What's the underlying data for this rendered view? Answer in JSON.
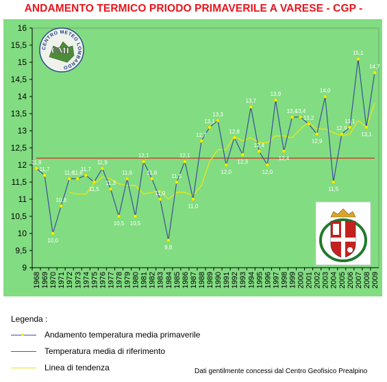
{
  "title": "ANDAMENTO TERMICO PRIODO PRIMAVERILE A VARESE - CGP -",
  "logo_text": "CENTRO METEO LOMBARDO",
  "logo_abbr": "CML",
  "legend": {
    "title": "Legenda :",
    "items": [
      {
        "label": "Andamento temperatura media primaverile"
      },
      {
        "label": "Temperatura media di riferimento"
      },
      {
        "label": "Linea di tendenza"
      }
    ]
  },
  "credit": "Dati gentilmente concessi dal Centro Geofisico Prealpino",
  "chart_data": {
    "type": "line",
    "title": "ANDAMENTO TERMICO PRIODO PRIMAVERILE A VARESE - CGP -",
    "xlabel": "",
    "ylabel": "",
    "ylim": [
      9,
      16
    ],
    "yticks": [
      "9",
      "9,5",
      "10",
      "10,5",
      "11",
      "11,5",
      "12",
      "12,5",
      "13",
      "13,5",
      "14",
      "14,5",
      "15",
      "15,5",
      "16"
    ],
    "categories": [
      "1968",
      "1969",
      "1970",
      "1971",
      "1972",
      "1973",
      "1974",
      "1975",
      "1976",
      "1977",
      "1978",
      "1979",
      "1980",
      "1981",
      "1982",
      "1983",
      "1984",
      "1985",
      "1986",
      "1987",
      "1988",
      "1989",
      "1990",
      "1991",
      "1992",
      "1993",
      "1994",
      "1995",
      "1996",
      "1997",
      "1998",
      "1999",
      "2000",
      "2001",
      "2002",
      "2003",
      "2004",
      "2005",
      "2006",
      "2007",
      "2008",
      "2009"
    ],
    "series": [
      {
        "name": "Andamento temperatura media primaverile",
        "color": "#3a4f9c",
        "values": [
          11.9,
          11.7,
          10.0,
          10.8,
          11.6,
          11.6,
          11.7,
          11.5,
          11.9,
          11.3,
          10.5,
          11.6,
          10.5,
          12.1,
          11.6,
          11.0,
          9.8,
          11.5,
          12.1,
          11.0,
          12.7,
          13.1,
          13.3,
          12.0,
          12.8,
          12.3,
          13.7,
          12.4,
          12.0,
          13.9,
          12.4,
          13.4,
          13.4,
          13.2,
          12.9,
          14.0,
          11.5,
          12.9,
          13.1,
          15.1,
          13.1,
          14.7
        ],
        "point_labels": [
          "11,9",
          "11,7",
          "10,0",
          "10,8",
          "11,6",
          "11,6",
          "11,7",
          "11,5",
          "11,9",
          "11,3",
          "10,5",
          "11,6",
          "10,5",
          "12,1",
          "11,6",
          "11,0",
          "9,8",
          "11,5",
          "12,1",
          "11,0",
          "12,7",
          "13,1",
          "13,3",
          "12,0",
          "12,8",
          "12,3",
          "13,7",
          "12,4",
          "12,0",
          "13,9",
          "12,4",
          "13,4",
          "13,4",
          "13,2",
          "12,9",
          "14,0",
          "11,5",
          "12,9",
          "13,1",
          "15,1",
          "13,1",
          "14,7"
        ]
      },
      {
        "name": "Temperatura media di riferimento",
        "color": "#d42a1f",
        "values": [
          12.2,
          12.2,
          12.2,
          12.2,
          12.2,
          12.2,
          12.2,
          12.2,
          12.2,
          12.2,
          12.2,
          12.2,
          12.2,
          12.2,
          12.2,
          12.2,
          12.2,
          12.2,
          12.2,
          12.2,
          12.2,
          12.2,
          12.2,
          12.2,
          12.2,
          12.2,
          12.2,
          12.2,
          12.2,
          12.2,
          12.2,
          12.2,
          12.2,
          12.2,
          12.2,
          12.2,
          12.2,
          12.2,
          12.2,
          12.2,
          12.2,
          12.2
        ]
      },
      {
        "name": "Linea di tendenza",
        "color": "#e6e61a",
        "values": [
          null,
          null,
          null,
          null,
          11.2,
          11.15,
          11.15,
          11.45,
          11.65,
          11.6,
          11.45,
          11.4,
          11.4,
          11.15,
          11.2,
          11.25,
          11.0,
          11.2,
          11.2,
          11.1,
          11.4,
          12.1,
          12.45,
          12.45,
          12.85,
          12.7,
          12.8,
          12.65,
          12.65,
          12.85,
          12.85,
          12.8,
          13.05,
          13.25,
          13.05,
          13.05,
          12.95,
          12.85,
          12.9,
          13.3,
          13.1,
          13.8
        ]
      }
    ]
  }
}
